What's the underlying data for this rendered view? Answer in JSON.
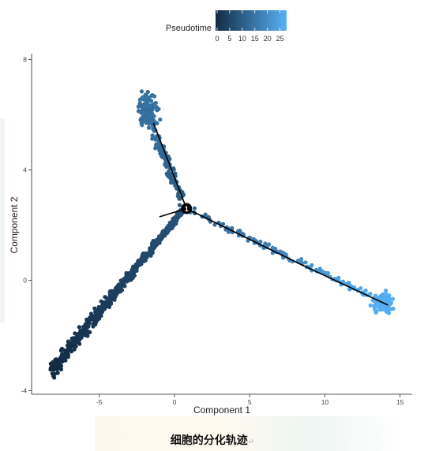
{
  "caption": {
    "text": "细胞的分化轨迹",
    "mark": "↵"
  },
  "chart_data": {
    "type": "scatter",
    "xlabel": "Component 1",
    "ylabel": "Component 2",
    "xlim": [
      -9.5,
      15.8
    ],
    "ylim": [
      -4.1,
      8.1
    ],
    "xticks": [
      -5,
      0,
      5,
      10,
      15
    ],
    "yticks": [
      -4,
      0,
      4,
      8
    ],
    "grid": false,
    "legend": {
      "title": "Pseudotime",
      "position": "top",
      "ticks": [
        0,
        5,
        10,
        15,
        20,
        25
      ],
      "range": [
        0,
        27
      ],
      "color_low": "#132b43",
      "color_high": "#56b1f7"
    },
    "branch_point": {
      "label": "1",
      "x": 0.8,
      "y": 2.6
    },
    "trajectory_edges": [
      [
        [
          -1.4,
          5.7
        ],
        [
          0.8,
          2.6
        ]
      ],
      [
        [
          0.8,
          2.6
        ],
        [
          -1.0,
          2.3
        ]
      ],
      [
        [
          0.8,
          2.6
        ],
        [
          8.5,
          0.55
        ]
      ],
      [
        [
          8.5,
          0.55
        ],
        [
          14.2,
          -0.9
        ]
      ]
    ],
    "branches": [
      {
        "name": "",
        "from": [
          -8.2,
          -3.3
        ],
        "to": [
          0.5,
          2.5
        ],
        "n": 600,
        "spread": 0.17,
        "t_range": [
          0,
          8
        ]
      },
      {
        "name": "",
        "from": [
          0.8,
          2.6
        ],
        "to": [
          -2.1,
          6.3
        ],
        "n": 170,
        "spread": 0.22,
        "t_range": [
          9,
          15
        ],
        "center": [
          -1.8,
          6.2
        ],
        "cluster_n": 120
      },
      {
        "name": "",
        "from": [
          0.8,
          2.6
        ],
        "to": [
          14.0,
          -0.8
        ],
        "n": 150,
        "spread": 0.12,
        "t_range": [
          11,
          27
        ],
        "center": [
          13.9,
          -0.8
        ],
        "cluster_n": 150
      }
    ]
  }
}
